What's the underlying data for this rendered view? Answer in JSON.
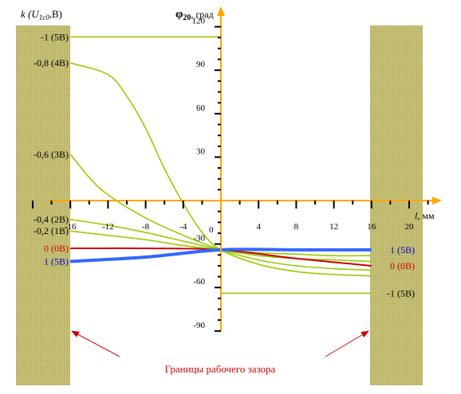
{
  "chart_data": {
    "type": "line",
    "left_axis_label": "k (U",
    "left_axis_label_sub": "1c0",
    "left_axis_label_tail": ",B)",
    "ylabel": "φ",
    "ylabel_sub": "20",
    "ylabel_unit": ", град",
    "xlabel": "l",
    "xlabel_unit": ", мм",
    "xlim": [
      -20,
      24
    ],
    "ylim": [
      -90,
      120
    ],
    "x_ticks": [
      {
        "v": -16,
        "label": "-16"
      },
      {
        "v": -12,
        "label": "-12"
      },
      {
        "v": -8,
        "label": "-8"
      },
      {
        "v": -4,
        "label": "-4"
      },
      {
        "v": 4,
        "label": "4"
      },
      {
        "v": 8,
        "label": "8"
      },
      {
        "v": 12,
        "label": "12"
      },
      {
        "v": 16,
        "label": "16"
      },
      {
        "v": 20,
        "label": "20"
      }
    ],
    "origin_label": "0",
    "y_ticks": [
      {
        "v": 120,
        "label": "120"
      },
      {
        "v": 90,
        "label": "90"
      },
      {
        "v": 60,
        "label": "60"
      },
      {
        "v": 30,
        "label": "30"
      },
      {
        "v": -30,
        "label": "-30"
      },
      {
        "v": -60,
        "label": "-60"
      },
      {
        "v": -90,
        "label": "-90"
      }
    ],
    "gap_limits_x": [
      -16,
      16
    ],
    "annotation": "Границы рабочего зазора",
    "left_labels": [
      {
        "text": "-1 (5В)",
        "y": 113,
        "color": "#000000"
      },
      {
        "text": "-0,8 (4В)",
        "y": 95,
        "color": "#000000"
      },
      {
        "text": "-0,6 (3В)",
        "y": 32,
        "color": "#000000"
      },
      {
        "text": "-0,4 (2В)",
        "y": -13,
        "color": "#000000"
      },
      {
        "text": "-0,2 (1В)",
        "y": -21,
        "color": "#000000"
      },
      {
        "text": "0 (0В)",
        "y": -33,
        "color": "#cc0000"
      },
      {
        "text": "1 (5В)",
        "y": -42,
        "color": "#0000cc"
      }
    ],
    "right_labels": [
      {
        "text": "1 (5В)",
        "y": -34,
        "color": "#0000cc"
      },
      {
        "text": "0 (0В)",
        "y": -45,
        "color": "#cc0000"
      },
      {
        "text": "-1 (5В)",
        "y": -64,
        "color": "#000000"
      }
    ],
    "series": [
      {
        "color": "#99cc00",
        "width": 1.6,
        "kind": "flat",
        "points": [
          [
            -16,
            113
          ],
          [
            0,
            113
          ],
          [
            0,
            -64
          ],
          [
            16,
            -64
          ]
        ]
      },
      {
        "color": "#99cc00",
        "width": 1.6,
        "kind": "curve",
        "points": [
          [
            -16,
            95
          ],
          [
            -12,
            87
          ],
          [
            -10,
            72
          ],
          [
            -8,
            50
          ],
          [
            -6,
            22
          ],
          [
            -4,
            -2
          ],
          [
            -2,
            -22
          ],
          [
            0,
            -34
          ],
          [
            4,
            -44
          ],
          [
            8,
            -49
          ],
          [
            12,
            -51
          ],
          [
            16,
            -52
          ]
        ]
      },
      {
        "color": "#99cc00",
        "width": 1.6,
        "kind": "curve",
        "points": [
          [
            -16,
            32
          ],
          [
            -14,
            16
          ],
          [
            -12,
            4
          ],
          [
            -8,
            -12
          ],
          [
            -4,
            -24
          ],
          [
            0,
            -34
          ],
          [
            4,
            -41
          ],
          [
            8,
            -45
          ],
          [
            12,
            -47
          ],
          [
            16,
            -48
          ]
        ]
      },
      {
        "color": "#99cc00",
        "width": 1.6,
        "kind": "curve",
        "points": [
          [
            -16,
            -13
          ],
          [
            -12,
            -17
          ],
          [
            -8,
            -22
          ],
          [
            -4,
            -28
          ],
          [
            0,
            -34
          ],
          [
            4,
            -38
          ],
          [
            8,
            -40
          ],
          [
            12,
            -41
          ],
          [
            16,
            -42
          ]
        ]
      },
      {
        "color": "#99cc00",
        "width": 1.6,
        "kind": "curve",
        "points": [
          [
            -16,
            -21
          ],
          [
            -12,
            -24
          ],
          [
            -8,
            -27
          ],
          [
            -4,
            -31
          ],
          [
            0,
            -34
          ],
          [
            4,
            -36
          ],
          [
            8,
            -37
          ],
          [
            12,
            -38
          ],
          [
            16,
            -38
          ]
        ]
      },
      {
        "color": "#cc0000",
        "width": 2,
        "kind": "curve",
        "points": [
          [
            -16,
            -33
          ],
          [
            -8,
            -33
          ],
          [
            0,
            -34
          ],
          [
            8,
            -40
          ],
          [
            16,
            -45
          ]
        ]
      },
      {
        "color": "#3366ff",
        "width": 4,
        "kind": "curve",
        "points": [
          [
            -16,
            -42
          ],
          [
            -8,
            -39
          ],
          [
            0,
            -34
          ],
          [
            8,
            -34
          ],
          [
            16,
            -34
          ]
        ]
      }
    ]
  }
}
